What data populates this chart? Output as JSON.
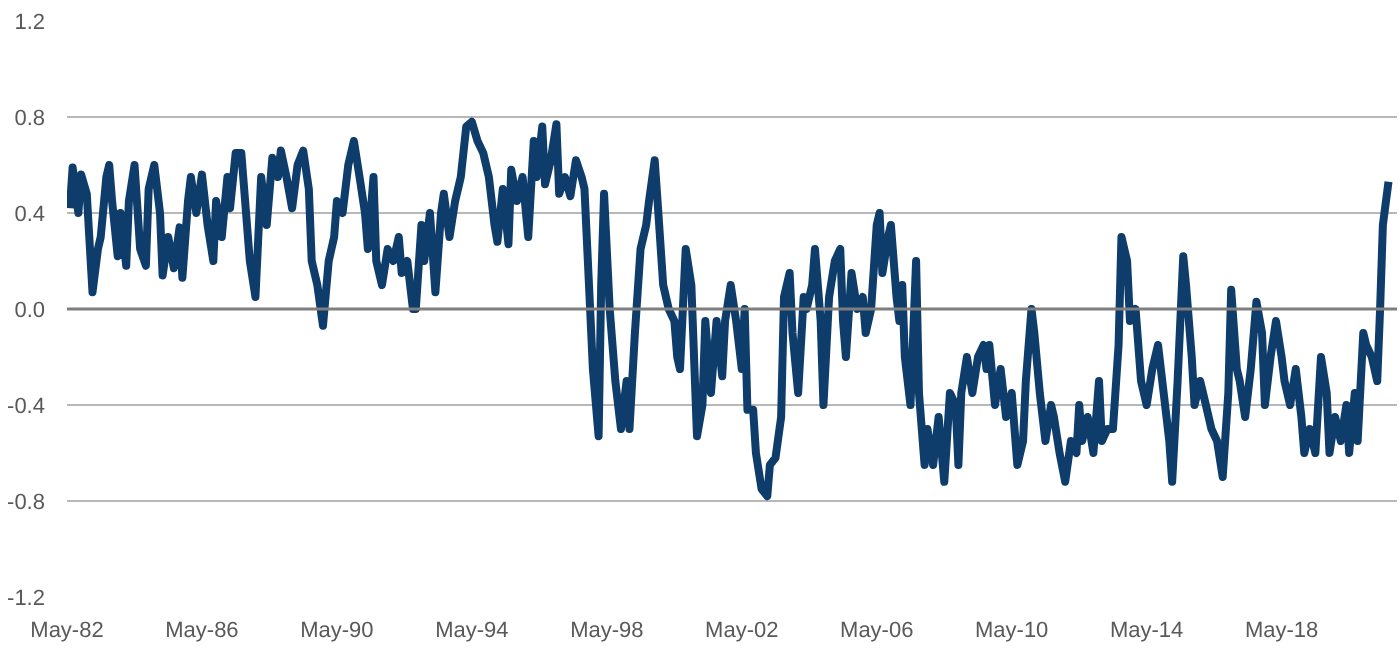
{
  "chart_data": {
    "type": "line",
    "xlim": [
      "1982-05",
      "2021-10"
    ],
    "xticks": [
      {
        "value": "1982-05",
        "label": "May-82"
      },
      {
        "value": "1986-05",
        "label": "May-86"
      },
      {
        "value": "1990-05",
        "label": "May-90"
      },
      {
        "value": "1994-05",
        "label": "May-94"
      },
      {
        "value": "1998-05",
        "label": "May-98"
      },
      {
        "value": "2002-05",
        "label": "May-02"
      },
      {
        "value": "2006-05",
        "label": "May-06"
      },
      {
        "value": "2010-05",
        "label": "May-10"
      },
      {
        "value": "2014-05",
        "label": "May-14"
      },
      {
        "value": "2018-05",
        "label": "May-18"
      }
    ],
    "ylim": [
      -1.2,
      1.2
    ],
    "yticks": [
      -1.2,
      -0.8,
      -0.4,
      {
        "value": 0,
        "label": "0.0"
      },
      0.4,
      0.8,
      1.2
    ],
    "grid": "y",
    "marker": "none",
    "line_style": "solid",
    "ref_lines": [
      {
        "axis": "y",
        "value": 0,
        "label": null,
        "color": "#7f7f7f"
      }
    ],
    "series": [
      {
        "color": "#0f3d6b",
        "x": [
          "1982-06",
          "1982-07",
          "1982-09",
          "1982-10",
          "1982-12",
          "1983-02",
          "1983-04",
          "1983-05",
          "1983-07",
          "1983-08",
          "1983-09",
          "1983-11",
          "1983-12",
          "1984-02",
          "1984-03",
          "1984-05",
          "1984-07",
          "1984-09",
          "1984-10",
          "1984-12",
          "1985-02",
          "1985-03",
          "1985-05",
          "1985-07",
          "1985-09",
          "1985-10",
          "1985-12",
          "1986-01",
          "1986-03",
          "1986-05",
          "1986-07",
          "1986-09",
          "1986-10",
          "1986-12",
          "1987-02",
          "1987-03",
          "1987-05",
          "1987-07",
          "1987-08",
          "1987-10",
          "1987-12",
          "1988-02",
          "1988-04",
          "1988-06",
          "1988-08",
          "1988-09",
          "1988-11",
          "1989-01",
          "1989-03",
          "1989-05",
          "1989-07",
          "1989-08",
          "1989-10",
          "1989-12",
          "1990-02",
          "1990-04",
          "1990-05",
          "1990-07",
          "1990-09",
          "1990-11",
          "1991-01",
          "1991-03",
          "1991-04",
          "1991-06",
          "1991-07",
          "1991-09",
          "1991-11",
          "1992-01",
          "1992-03",
          "1992-04",
          "1992-06",
          "1992-08",
          "1992-09",
          "1992-11",
          "1992-12",
          "1993-02",
          "1993-04",
          "1993-06",
          "1993-07",
          "1993-09",
          "1993-11",
          "1994-01",
          "1994-03",
          "1994-05",
          "1994-07",
          "1994-09",
          "1994-11",
          "1995-01",
          "1995-02",
          "1995-04",
          "1995-06",
          "1995-07",
          "1995-09",
          "1995-11",
          "1996-01",
          "1996-03",
          "1996-04",
          "1996-06",
          "1996-07",
          "1996-09",
          "1996-11",
          "1996-12",
          "1997-02",
          "1997-04",
          "1997-06",
          "1997-08",
          "1997-09",
          "1997-11",
          "1997-12",
          "1998-02",
          "1998-03",
          "1998-04",
          "1998-06",
          "1998-08",
          "1998-10",
          "1998-12",
          "1999-01",
          "1999-03",
          "1999-05",
          "1999-07",
          "1999-08",
          "1999-10",
          "1999-11",
          "2000-01",
          "2000-03",
          "2000-05",
          "2000-06",
          "2000-07",
          "2000-09",
          "2000-11",
          "2001-01",
          "2001-03",
          "2001-04",
          "2001-06",
          "2001-08",
          "2001-10",
          "2001-11",
          "2002-01",
          "2002-03",
          "2002-05",
          "2002-06",
          "2002-07",
          "2002-09",
          "2002-10",
          "2002-12",
          "2003-02",
          "2003-03",
          "2003-05",
          "2003-07",
          "2003-08",
          "2003-10",
          "2003-11",
          "2004-01",
          "2004-03",
          "2004-04",
          "2004-06",
          "2004-07",
          "2004-09",
          "2004-10",
          "2004-12",
          "2005-02",
          "2005-04",
          "2005-05",
          "2005-06",
          "2005-08",
          "2005-10",
          "2005-12",
          "2006-01",
          "2006-03",
          "2006-05",
          "2006-06",
          "2006-07",
          "2006-09",
          "2006-10",
          "2006-12",
          "2007-01",
          "2007-02",
          "2007-03",
          "2007-05",
          "2007-07",
          "2007-08",
          "2007-10",
          "2007-11",
          "2008-01",
          "2008-03",
          "2008-05",
          "2008-07",
          "2008-09",
          "2008-10",
          "2008-11",
          "2009-01",
          "2009-03",
          "2009-05",
          "2009-07",
          "2009-08",
          "2009-09",
          "2009-11",
          "2010-01",
          "2010-03",
          "2010-05",
          "2010-07",
          "2010-09",
          "2010-10",
          "2010-12",
          "2011-01",
          "2011-03",
          "2011-05",
          "2011-07",
          "2011-08",
          "2011-10",
          "2011-12",
          "2012-02",
          "2012-04",
          "2012-05",
          "2012-06",
          "2012-08",
          "2012-10",
          "2012-12",
          "2013-01",
          "2013-03",
          "2013-05",
          "2013-07",
          "2013-08",
          "2013-10",
          "2013-11",
          "2014-01",
          "2014-03",
          "2014-05",
          "2014-07",
          "2014-09",
          "2014-11",
          "2015-01",
          "2015-02",
          "2015-04",
          "2015-06",
          "2015-07",
          "2015-09",
          "2015-10",
          "2015-12",
          "2016-02",
          "2016-04",
          "2016-06",
          "2016-08",
          "2016-10",
          "2016-11",
          "2017-01",
          "2017-02",
          "2017-04",
          "2017-06",
          "2017-08",
          "2017-10",
          "2017-11",
          "2018-01",
          "2018-03",
          "2018-05",
          "2018-06",
          "2018-08",
          "2018-10",
          "2018-12",
          "2019-01",
          "2019-03",
          "2019-05",
          "2019-07",
          "2019-09",
          "2019-10",
          "2019-12",
          "2020-02",
          "2020-04",
          "2020-05",
          "2020-07",
          "2020-08",
          "2020-10",
          "2020-11",
          "2021-01",
          "2021-03",
          "2021-04",
          "2021-05",
          "2021-07"
        ],
        "values": [
          0.42,
          0.59,
          0.4,
          0.56,
          0.48,
          0.07,
          0.25,
          0.3,
          0.55,
          0.6,
          0.45,
          0.22,
          0.4,
          0.18,
          0.45,
          0.6,
          0.25,
          0.18,
          0.5,
          0.6,
          0.4,
          0.14,
          0.3,
          0.17,
          0.34,
          0.13,
          0.45,
          0.55,
          0.4,
          0.56,
          0.35,
          0.2,
          0.45,
          0.3,
          0.55,
          0.42,
          0.65,
          0.65,
          0.5,
          0.2,
          0.05,
          0.55,
          0.35,
          0.63,
          0.55,
          0.66,
          0.55,
          0.42,
          0.6,
          0.66,
          0.5,
          0.2,
          0.1,
          -0.07,
          0.2,
          0.3,
          0.45,
          0.4,
          0.6,
          0.7,
          0.55,
          0.4,
          0.25,
          0.55,
          0.2,
          0.1,
          0.25,
          0.2,
          0.3,
          0.15,
          0.2,
          0.0,
          0.0,
          0.35,
          0.2,
          0.4,
          0.07,
          0.4,
          0.48,
          0.3,
          0.45,
          0.55,
          0.76,
          0.78,
          0.7,
          0.65,
          0.55,
          0.35,
          0.28,
          0.5,
          0.27,
          0.58,
          0.45,
          0.55,
          0.3,
          0.7,
          0.55,
          0.76,
          0.52,
          0.62,
          0.77,
          0.48,
          0.55,
          0.47,
          0.62,
          0.55,
          0.5,
          0.0,
          -0.25,
          -0.53,
          0.1,
          0.48,
          0.0,
          -0.3,
          -0.5,
          -0.3,
          -0.5,
          -0.1,
          0.25,
          0.35,
          0.45,
          0.62,
          0.45,
          0.1,
          0.0,
          -0.05,
          -0.2,
          -0.25,
          0.25,
          0.1,
          -0.53,
          -0.4,
          -0.05,
          -0.35,
          -0.05,
          -0.28,
          -0.05,
          0.1,
          -0.05,
          -0.25,
          0.0,
          -0.42,
          -0.42,
          -0.6,
          -0.75,
          -0.78,
          -0.65,
          -0.62,
          -0.45,
          0.05,
          0.15,
          -0.1,
          -0.35,
          0.05,
          0.0,
          0.1,
          0.25,
          -0.05,
          -0.4,
          0.05,
          0.2,
          0.25,
          -0.05,
          -0.2,
          0.15,
          0.0,
          0.05,
          -0.1,
          0.0,
          0.35,
          0.4,
          0.15,
          0.3,
          0.35,
          0.05,
          -0.05,
          0.1,
          -0.2,
          -0.4,
          0.2,
          -0.35,
          -0.65,
          -0.5,
          -0.65,
          -0.45,
          -0.72,
          -0.35,
          -0.4,
          -0.65,
          -0.35,
          -0.2,
          -0.35,
          -0.2,
          -0.15,
          -0.25,
          -0.15,
          -0.4,
          -0.25,
          -0.45,
          -0.35,
          -0.65,
          -0.55,
          -0.3,
          0.0,
          -0.1,
          -0.35,
          -0.55,
          -0.4,
          -0.45,
          -0.6,
          -0.72,
          -0.55,
          -0.6,
          -0.4,
          -0.55,
          -0.45,
          -0.6,
          -0.3,
          -0.55,
          -0.5,
          -0.5,
          -0.15,
          0.3,
          0.2,
          -0.05,
          0.0,
          -0.3,
          -0.4,
          -0.25,
          -0.15,
          -0.35,
          -0.55,
          -0.72,
          -0.3,
          0.22,
          0.1,
          -0.2,
          -0.4,
          -0.3,
          -0.4,
          -0.5,
          -0.55,
          -0.7,
          -0.35,
          0.08,
          -0.25,
          -0.3,
          -0.45,
          -0.25,
          0.03,
          -0.1,
          -0.4,
          -0.2,
          -0.05,
          -0.2,
          -0.3,
          -0.4,
          -0.25,
          -0.45,
          -0.6,
          -0.5,
          -0.6,
          -0.2,
          -0.35,
          -0.6,
          -0.45,
          -0.55,
          -0.4,
          -0.6,
          -0.35,
          -0.55,
          -0.1,
          -0.15,
          -0.2,
          -0.3,
          0.0,
          0.35,
          0.53
        ]
      }
    ]
  }
}
